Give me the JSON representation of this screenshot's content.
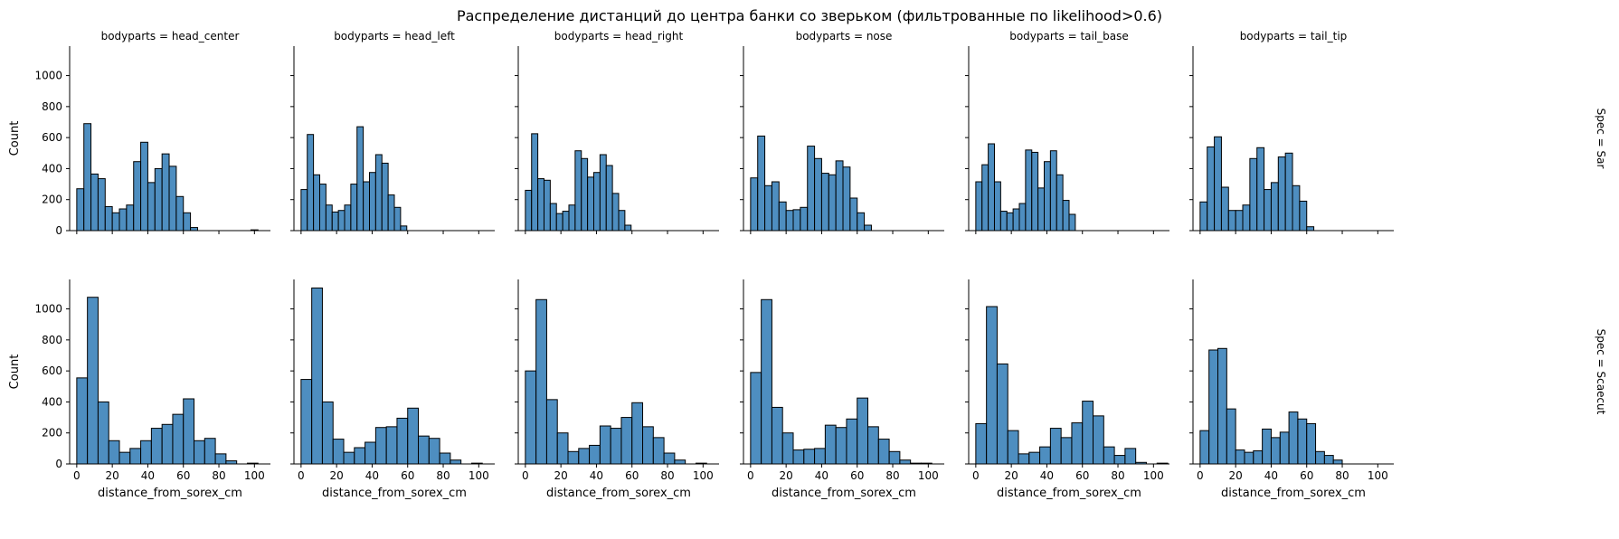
{
  "chart_data": {
    "type": "bar",
    "title": "Распределение дистанций до центра банки со зверьком (фильтрованные по likelihood>0.6)",
    "xlabel": "distance_from_sorex_cm",
    "ylabel": "Count",
    "xlim": [
      -4,
      109
    ],
    "ylim": [
      0,
      1190
    ],
    "x_ticks": [
      0,
      20,
      40,
      60,
      80,
      100
    ],
    "y_ticks": [
      0,
      200,
      400,
      600,
      800,
      1000
    ],
    "grid": false,
    "columns": [
      "bodyparts = head_center",
      "bodyparts = head_left",
      "bodyparts = head_right",
      "bodyparts = nose",
      "bodyparts = tail_base",
      "bodyparts = tail_tip"
    ],
    "rows": [
      "Spec = Sar",
      "Spec = Scaecut"
    ],
    "panels": [
      {
        "col": 0,
        "row": 0,
        "bins": [
          [
            0,
            4,
            270
          ],
          [
            4,
            8,
            690
          ],
          [
            8,
            12,
            365
          ],
          [
            12,
            16,
            335
          ],
          [
            16,
            20,
            155
          ],
          [
            20,
            24,
            115
          ],
          [
            24,
            28,
            140
          ],
          [
            28,
            32,
            165
          ],
          [
            32,
            36,
            445
          ],
          [
            36,
            40,
            570
          ],
          [
            40,
            44,
            310
          ],
          [
            44,
            48,
            400
          ],
          [
            48,
            52,
            495
          ],
          [
            52,
            56,
            415
          ],
          [
            56,
            60,
            220
          ],
          [
            60,
            64,
            115
          ],
          [
            64,
            68,
            20
          ],
          [
            98,
            102,
            5
          ]
        ]
      },
      {
        "col": 1,
        "row": 0,
        "bins": [
          [
            0,
            3.5,
            265
          ],
          [
            3.5,
            7,
            620
          ],
          [
            7,
            10.5,
            360
          ],
          [
            10.5,
            14,
            300
          ],
          [
            14,
            17.5,
            165
          ],
          [
            17.5,
            21,
            120
          ],
          [
            21,
            24.5,
            130
          ],
          [
            24.5,
            28,
            165
          ],
          [
            28,
            31.5,
            300
          ],
          [
            31.5,
            35,
            670
          ],
          [
            35,
            38.5,
            315
          ],
          [
            38.5,
            42,
            375
          ],
          [
            42,
            45.5,
            490
          ],
          [
            45.5,
            49,
            435
          ],
          [
            49,
            52.5,
            230
          ],
          [
            52.5,
            56,
            150
          ],
          [
            56,
            59.5,
            30
          ]
        ]
      },
      {
        "col": 2,
        "row": 0,
        "bins": [
          [
            0,
            3.5,
            260
          ],
          [
            3.5,
            7,
            625
          ],
          [
            7,
            10.5,
            335
          ],
          [
            10.5,
            14,
            325
          ],
          [
            14,
            17.5,
            175
          ],
          [
            17.5,
            21,
            110
          ],
          [
            21,
            24.5,
            125
          ],
          [
            24.5,
            28,
            165
          ],
          [
            28,
            31.5,
            515
          ],
          [
            31.5,
            35,
            465
          ],
          [
            35,
            38.5,
            345
          ],
          [
            38.5,
            42,
            375
          ],
          [
            42,
            45.5,
            490
          ],
          [
            45.5,
            49,
            420
          ],
          [
            49,
            52.5,
            240
          ],
          [
            52.5,
            56,
            130
          ],
          [
            56,
            59.5,
            35
          ]
        ]
      },
      {
        "col": 3,
        "row": 0,
        "bins": [
          [
            0,
            4,
            340
          ],
          [
            4,
            8,
            610
          ],
          [
            8,
            12,
            290
          ],
          [
            12,
            16,
            315
          ],
          [
            16,
            20,
            185
          ],
          [
            20,
            24,
            130
          ],
          [
            24,
            28,
            135
          ],
          [
            28,
            32,
            150
          ],
          [
            32,
            36,
            545
          ],
          [
            36,
            40,
            465
          ],
          [
            40,
            44,
            370
          ],
          [
            44,
            48,
            360
          ],
          [
            48,
            52,
            450
          ],
          [
            52,
            56,
            410
          ],
          [
            56,
            60,
            210
          ],
          [
            60,
            64,
            115
          ],
          [
            64,
            68,
            35
          ]
        ]
      },
      {
        "col": 4,
        "row": 0,
        "bins": [
          [
            0,
            3.5,
            315
          ],
          [
            3.5,
            7,
            425
          ],
          [
            7,
            10.5,
            560
          ],
          [
            10.5,
            14,
            315
          ],
          [
            14,
            17.5,
            125
          ],
          [
            17.5,
            21,
            115
          ],
          [
            21,
            24.5,
            140
          ],
          [
            24.5,
            28,
            175
          ],
          [
            28,
            31.5,
            520
          ],
          [
            31.5,
            35,
            505
          ],
          [
            35,
            38.5,
            275
          ],
          [
            38.5,
            42,
            445
          ],
          [
            42,
            45.5,
            515
          ],
          [
            45.5,
            49,
            360
          ],
          [
            49,
            52.5,
            195
          ],
          [
            52.5,
            56,
            105
          ]
        ]
      },
      {
        "col": 5,
        "row": 0,
        "bins": [
          [
            0,
            4,
            185
          ],
          [
            4,
            8,
            540
          ],
          [
            8,
            12,
            605
          ],
          [
            12,
            16,
            280
          ],
          [
            16,
            20,
            130
          ],
          [
            20,
            24,
            130
          ],
          [
            24,
            28,
            165
          ],
          [
            28,
            32,
            465
          ],
          [
            32,
            36,
            535
          ],
          [
            36,
            40,
            265
          ],
          [
            40,
            44,
            310
          ],
          [
            44,
            48,
            475
          ],
          [
            48,
            52,
            500
          ],
          [
            52,
            56,
            290
          ],
          [
            56,
            60,
            190
          ],
          [
            60,
            64,
            25
          ]
        ]
      },
      {
        "col": 0,
        "row": 1,
        "bins": [
          [
            0,
            6,
            555
          ],
          [
            6,
            12,
            1075
          ],
          [
            12,
            18,
            400
          ],
          [
            18,
            24,
            150
          ],
          [
            24,
            30,
            75
          ],
          [
            30,
            36,
            100
          ],
          [
            36,
            42,
            150
          ],
          [
            42,
            48,
            230
          ],
          [
            48,
            54,
            255
          ],
          [
            54,
            60,
            320
          ],
          [
            60,
            66,
            420
          ],
          [
            66,
            72,
            150
          ],
          [
            72,
            78,
            165
          ],
          [
            78,
            84,
            65
          ],
          [
            84,
            90,
            20
          ],
          [
            96,
            102,
            5
          ]
        ]
      },
      {
        "col": 1,
        "row": 1,
        "bins": [
          [
            0,
            6,
            545
          ],
          [
            6,
            12,
            1135
          ],
          [
            12,
            18,
            400
          ],
          [
            18,
            24,
            160
          ],
          [
            24,
            30,
            75
          ],
          [
            30,
            36,
            105
          ],
          [
            36,
            42,
            140
          ],
          [
            42,
            48,
            235
          ],
          [
            48,
            54,
            240
          ],
          [
            54,
            60,
            295
          ],
          [
            60,
            66,
            360
          ],
          [
            66,
            72,
            180
          ],
          [
            72,
            78,
            165
          ],
          [
            78,
            84,
            70
          ],
          [
            84,
            90,
            25
          ],
          [
            96,
            102,
            5
          ]
        ]
      },
      {
        "col": 2,
        "row": 1,
        "bins": [
          [
            0,
            6,
            600
          ],
          [
            6,
            12,
            1060
          ],
          [
            12,
            18,
            415
          ],
          [
            18,
            24,
            200
          ],
          [
            24,
            30,
            80
          ],
          [
            30,
            36,
            100
          ],
          [
            36,
            42,
            120
          ],
          [
            42,
            48,
            245
          ],
          [
            48,
            54,
            230
          ],
          [
            54,
            60,
            300
          ],
          [
            60,
            66,
            395
          ],
          [
            66,
            72,
            240
          ],
          [
            72,
            78,
            170
          ],
          [
            78,
            84,
            70
          ],
          [
            84,
            90,
            25
          ],
          [
            96,
            102,
            5
          ]
        ]
      },
      {
        "col": 3,
        "row": 1,
        "bins": [
          [
            0,
            6,
            590
          ],
          [
            6,
            12,
            1060
          ],
          [
            12,
            18,
            365
          ],
          [
            18,
            24,
            200
          ],
          [
            24,
            30,
            90
          ],
          [
            30,
            36,
            95
          ],
          [
            36,
            42,
            100
          ],
          [
            42,
            48,
            250
          ],
          [
            48,
            54,
            235
          ],
          [
            54,
            60,
            290
          ],
          [
            60,
            66,
            425
          ],
          [
            66,
            72,
            240
          ],
          [
            72,
            78,
            160
          ],
          [
            78,
            84,
            80
          ],
          [
            84,
            90,
            25
          ],
          [
            90,
            96,
            5
          ],
          [
            96,
            102,
            5
          ]
        ]
      },
      {
        "col": 4,
        "row": 1,
        "bins": [
          [
            0,
            6,
            260
          ],
          [
            6,
            12,
            1015
          ],
          [
            12,
            18,
            645
          ],
          [
            18,
            24,
            215
          ],
          [
            24,
            30,
            65
          ],
          [
            30,
            36,
            75
          ],
          [
            36,
            42,
            110
          ],
          [
            42,
            48,
            230
          ],
          [
            48,
            54,
            170
          ],
          [
            54,
            60,
            265
          ],
          [
            60,
            66,
            405
          ],
          [
            66,
            72,
            310
          ],
          [
            72,
            78,
            110
          ],
          [
            78,
            84,
            55
          ],
          [
            84,
            90,
            100
          ],
          [
            90,
            96,
            10
          ],
          [
            102,
            108,
            5
          ]
        ]
      },
      {
        "col": 5,
        "row": 1,
        "bins": [
          [
            0,
            5,
            215
          ],
          [
            5,
            10,
            735
          ],
          [
            10,
            15,
            745
          ],
          [
            15,
            20,
            355
          ],
          [
            20,
            25,
            90
          ],
          [
            25,
            30,
            75
          ],
          [
            30,
            35,
            85
          ],
          [
            35,
            40,
            225
          ],
          [
            40,
            45,
            170
          ],
          [
            45,
            50,
            205
          ],
          [
            50,
            55,
            335
          ],
          [
            55,
            60,
            290
          ],
          [
            60,
            65,
            260
          ],
          [
            65,
            70,
            80
          ],
          [
            70,
            75,
            55
          ],
          [
            75,
            80,
            25
          ]
        ]
      }
    ]
  }
}
